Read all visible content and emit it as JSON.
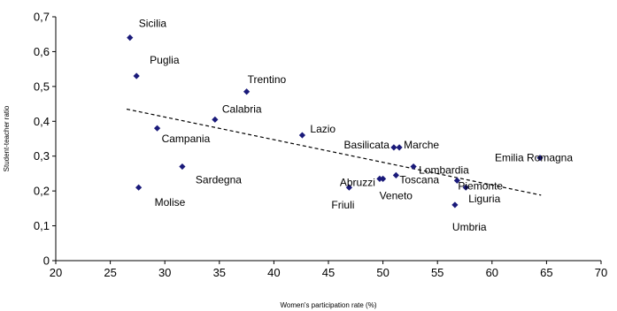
{
  "chart_data": {
    "type": "scatter",
    "title": "",
    "xlabel": "Women's participation rate (%)",
    "ylabel": "Student-teacher ratio",
    "xlim": [
      20,
      70
    ],
    "ylim": [
      0,
      0.7
    ],
    "x_ticks": [
      "20",
      "25",
      "30",
      "35",
      "40",
      "45",
      "50",
      "55",
      "60",
      "65",
      "70"
    ],
    "y_ticks": [
      "0",
      "0,1",
      "0,2",
      "0,3",
      "0,4",
      "0,5",
      "0,6",
      "0,7"
    ],
    "grid": false,
    "legend": false,
    "colors": {
      "marker": "#1a1a7a",
      "trendline": "#000000",
      "axis": "#000000"
    },
    "points": [
      {
        "label": "Sicilia",
        "x": 26.8,
        "y": 0.64
      },
      {
        "label": "Puglia",
        "x": 27.4,
        "y": 0.53
      },
      {
        "label": "Trentino",
        "x": 37.5,
        "y": 0.485
      },
      {
        "label": "Calabria",
        "x": 34.6,
        "y": 0.405
      },
      {
        "label": "Campania",
        "x": 29.3,
        "y": 0.38
      },
      {
        "label": "Lazio",
        "x": 42.6,
        "y": 0.36
      },
      {
        "label": "Basilicata",
        "x": 51.0,
        "y": 0.325
      },
      {
        "label": "Marche",
        "x": 51.5,
        "y": 0.325
      },
      {
        "label": "Emilia Romagna",
        "x": 64.4,
        "y": 0.295
      },
      {
        "label": "Lombardia",
        "x": 52.8,
        "y": 0.27
      },
      {
        "label": "Sardegna",
        "x": 31.6,
        "y": 0.27
      },
      {
        "label": "Abruzzi",
        "x": 49.7,
        "y": 0.235
      },
      {
        "label": "Toscana",
        "x": 51.2,
        "y": 0.245
      },
      {
        "label": "Veneto",
        "x": 50.0,
        "y": 0.235
      },
      {
        "label": "Piemonte",
        "x": 56.8,
        "y": 0.23
      },
      {
        "label": "Liguria",
        "x": 57.6,
        "y": 0.21
      },
      {
        "label": "Friuli",
        "x": 46.9,
        "y": 0.21
      },
      {
        "label": "Molise",
        "x": 27.6,
        "y": 0.21
      },
      {
        "label": "Umbria",
        "x": 56.6,
        "y": 0.16
      }
    ],
    "trendline": {
      "x": [
        26.5,
        64.5
      ],
      "y": [
        0.435,
        0.188
      ],
      "style": "dashed"
    }
  }
}
